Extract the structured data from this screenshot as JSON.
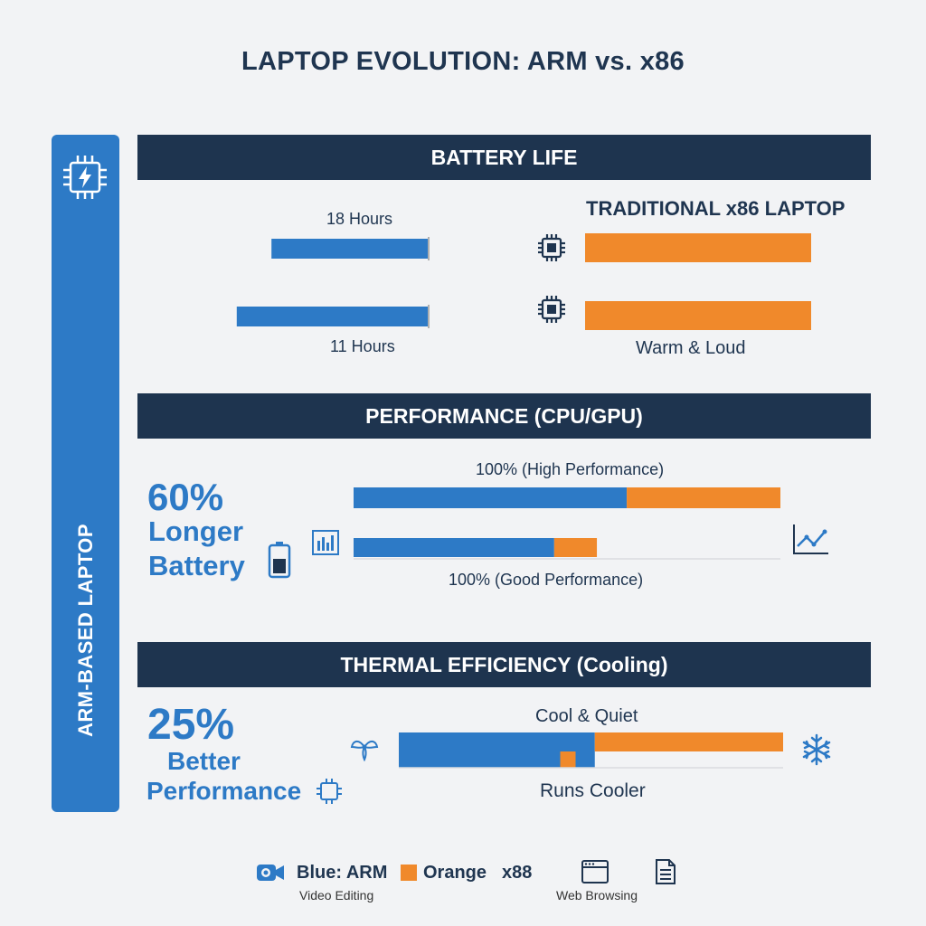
{
  "title": "LAPTOP EVOLUTION: ARM vs. x86",
  "side_label": "ARM-BASED LAPTOP",
  "colors": {
    "arm": "#2d7ac6",
    "x86": "#f0892b",
    "band": "#1e344f",
    "accent_text": "#2d7ac6"
  },
  "sections": {
    "battery": "BATTERY LIFE",
    "performance": "PERFORMANCE (CPU/GPU)",
    "thermal": "THERMAL EFFICIENCY (Cooling)"
  },
  "battery": {
    "arm_label_1": "18 Hours",
    "arm_label_2": "11 Hours",
    "x86_title": "TRADITIONAL x86 LAPTOP",
    "x86_note": "Warm & Loud"
  },
  "performance": {
    "stat_value": "60%",
    "stat_line1": "Longer",
    "stat_line2": "Battery",
    "label_top": "100% (High Performance)",
    "label_bottom": "100% (Good Performance)"
  },
  "thermal": {
    "stat_value": "25%",
    "stat_line1": "Better",
    "stat_line2": "Performance",
    "label_top": "Cool & Quiet",
    "label_bottom": "Runs Cooler"
  },
  "legend": {
    "arm": "Blue: ARM",
    "x86_word": "Orange",
    "x86_code": "x88",
    "sub_left": "Video Editing",
    "sub_right": "Web Browsing"
  },
  "icons": [
    "chip-bolt-icon",
    "cpu-chip-icon",
    "bar-chart-icon",
    "battery-icon",
    "line-chart-icon",
    "fan-icon",
    "snowflake-icon",
    "video-camera-icon",
    "browser-window-icon",
    "document-icon"
  ],
  "chart_data": {
    "type": "bar",
    "orientation": "horizontal",
    "panels": [
      {
        "title": "BATTERY LIFE",
        "series": [
          {
            "values": [
              0.54,
              0.66
            ],
            "labels": [
              "18 Hours",
              "11 Hours"
            ]
          },
          {
            "name": "TRADITIONAL x86 LAPTOP",
            "values": [
              1.0,
              1.0
            ]
          }
        ]
      },
      {
        "title": "PERFORMANCE (CPU/GPU)",
        "rows": [
          {
            "label": "100% (High Performance)",
            "arm": 0.64,
            "x86": 0.36
          },
          {
            "label": "100% (Good Performance)",
            "arm": 0.47,
            "x86": 0.1
          }
        ]
      },
      {
        "title": "THERMAL EFFICIENCY (Cooling)",
        "rows": [
          {
            "label": "Cool & Quiet",
            "arm": 0.51,
            "x86": 0.49
          },
          {
            "label": "Runs Cooler",
            "arm": 0.42,
            "x86": 0.04
          }
        ]
      }
    ],
    "legend": [
      "Blue: ARM",
      "Orange x88"
    ]
  }
}
